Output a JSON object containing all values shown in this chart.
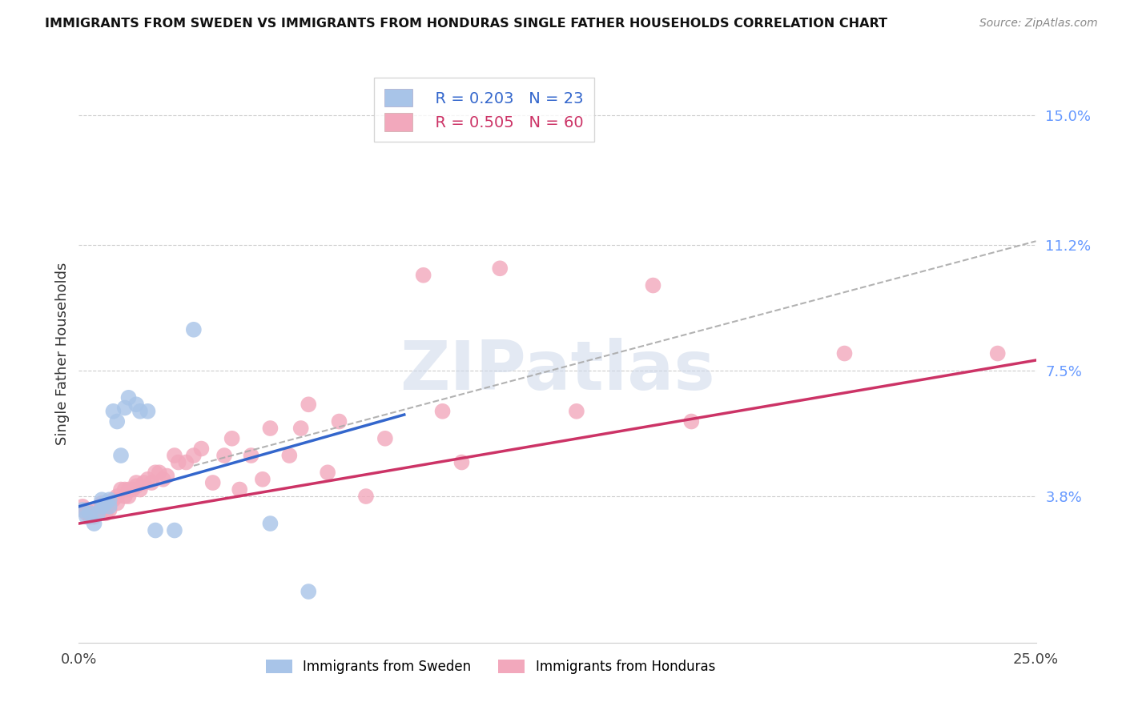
{
  "title": "IMMIGRANTS FROM SWEDEN VS IMMIGRANTS FROM HONDURAS SINGLE FATHER HOUSEHOLDS CORRELATION CHART",
  "source": "Source: ZipAtlas.com",
  "ylabel": "Single Father Households",
  "xlim": [
    0.0,
    0.25
  ],
  "ylim": [
    -0.005,
    0.165
  ],
  "yticks": [
    0.038,
    0.075,
    0.112,
    0.15
  ],
  "ytick_labels": [
    "3.8%",
    "7.5%",
    "11.2%",
    "15.0%"
  ],
  "xticks": [
    0.0,
    0.05,
    0.1,
    0.15,
    0.2,
    0.25
  ],
  "xtick_labels": [
    "0.0%",
    "",
    "",
    "",
    "",
    "25.0%"
  ],
  "watermark": "ZIPatlas",
  "sweden_R": 0.203,
  "sweden_N": 23,
  "honduras_R": 0.505,
  "honduras_N": 60,
  "sweden_color": "#a8c4e8",
  "honduras_color": "#f2a8bc",
  "sweden_line_color": "#3366cc",
  "honduras_line_color": "#cc3366",
  "sweden_line": [
    0.0,
    0.035,
    0.085,
    0.062
  ],
  "honduras_line": [
    0.0,
    0.03,
    0.25,
    0.078
  ],
  "dashed_line": [
    0.03,
    0.047,
    0.25,
    0.113
  ],
  "sweden_x": [
    0.001,
    0.002,
    0.003,
    0.004,
    0.005,
    0.006,
    0.006,
    0.007,
    0.008,
    0.008,
    0.009,
    0.01,
    0.011,
    0.012,
    0.013,
    0.015,
    0.016,
    0.018,
    0.02,
    0.025,
    0.03,
    0.05,
    0.06
  ],
  "sweden_y": [
    0.034,
    0.032,
    0.033,
    0.03,
    0.033,
    0.035,
    0.037,
    0.036,
    0.037,
    0.035,
    0.063,
    0.06,
    0.05,
    0.064,
    0.067,
    0.065,
    0.063,
    0.063,
    0.028,
    0.028,
    0.087,
    0.03,
    0.01
  ],
  "honduras_x": [
    0.001,
    0.002,
    0.002,
    0.003,
    0.003,
    0.004,
    0.005,
    0.005,
    0.006,
    0.006,
    0.007,
    0.008,
    0.008,
    0.009,
    0.01,
    0.01,
    0.011,
    0.012,
    0.012,
    0.013,
    0.013,
    0.014,
    0.015,
    0.015,
    0.016,
    0.017,
    0.018,
    0.019,
    0.02,
    0.021,
    0.022,
    0.023,
    0.025,
    0.026,
    0.028,
    0.03,
    0.032,
    0.035,
    0.038,
    0.04,
    0.042,
    0.045,
    0.048,
    0.05,
    0.055,
    0.058,
    0.06,
    0.065,
    0.068,
    0.075,
    0.08,
    0.09,
    0.095,
    0.1,
    0.11,
    0.13,
    0.15,
    0.16,
    0.2,
    0.24
  ],
  "honduras_y": [
    0.035,
    0.034,
    0.033,
    0.033,
    0.032,
    0.032,
    0.033,
    0.034,
    0.034,
    0.036,
    0.033,
    0.034,
    0.036,
    0.037,
    0.036,
    0.038,
    0.04,
    0.038,
    0.04,
    0.038,
    0.04,
    0.04,
    0.041,
    0.042,
    0.04,
    0.042,
    0.043,
    0.042,
    0.045,
    0.045,
    0.043,
    0.044,
    0.05,
    0.048,
    0.048,
    0.05,
    0.052,
    0.042,
    0.05,
    0.055,
    0.04,
    0.05,
    0.043,
    0.058,
    0.05,
    0.058,
    0.065,
    0.045,
    0.06,
    0.038,
    0.055,
    0.103,
    0.063,
    0.048,
    0.105,
    0.063,
    0.1,
    0.06,
    0.08,
    0.08
  ]
}
